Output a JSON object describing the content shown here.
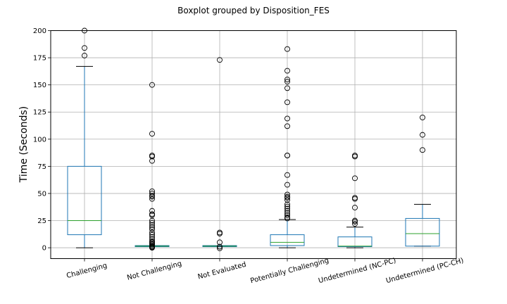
{
  "chart_data": {
    "type": "boxplot",
    "title": "Boxplot grouped by Disposition_FES",
    "xlabel": "",
    "ylabel": "Time (Seconds)",
    "ylim": [
      -10,
      200
    ],
    "yticks": [
      0,
      25,
      50,
      75,
      100,
      125,
      150,
      175,
      200
    ],
    "grid": true,
    "colors": {
      "box": "#1f77b4",
      "median": "#2ca02c",
      "whisker": "#1f77b4",
      "cap": "#000000",
      "grid": "#b0b0b0",
      "frame": "#000000"
    },
    "categories": [
      "Challenging",
      "Not Challenging",
      "Not Evaluated",
      "Potentially Challenging",
      "Undetermined (NC-PC)",
      "Undetermined (PC-CH)"
    ],
    "boxes": [
      {
        "q1": 12,
        "median": 25,
        "q3": 75,
        "whisker_low": 0,
        "whisker_high": 167,
        "outliers": [
          177,
          184,
          200
        ]
      },
      {
        "q1": 1,
        "median": 1.5,
        "q3": 2,
        "whisker_low": 1,
        "whisker_high": 2,
        "outliers": [
          0,
          0.5,
          1,
          2,
          3,
          4,
          5,
          6,
          8,
          10,
          12,
          14,
          17,
          19,
          21,
          23,
          25,
          30,
          31,
          34,
          45,
          47,
          48,
          50,
          52,
          80,
          84,
          85,
          105,
          150
        ]
      },
      {
        "q1": 1,
        "median": 1.5,
        "q3": 2,
        "whisker_low": 1,
        "whisker_high": 2,
        "outliers": [
          -0.5,
          1,
          5,
          13,
          14,
          173
        ]
      },
      {
        "q1": 2,
        "median": 5,
        "q3": 12,
        "whisker_low": 0,
        "whisker_high": 26,
        "outliers": [
          27,
          28,
          30,
          32,
          34,
          36,
          38,
          40,
          44,
          46,
          47,
          49,
          58,
          67,
          85,
          85,
          112,
          119,
          134,
          147,
          153,
          155,
          163,
          183
        ]
      },
      {
        "q1": 1,
        "median": 1.5,
        "q3": 10,
        "whisker_low": 0,
        "whisker_high": 19,
        "outliers": [
          22,
          24,
          25,
          37,
          45,
          46,
          64,
          84,
          85
        ]
      },
      {
        "q1": 1.5,
        "median": 13,
        "q3": 27,
        "whisker_low": 1.5,
        "whisker_high": 40,
        "outliers": [
          90,
          104,
          120
        ]
      }
    ]
  }
}
